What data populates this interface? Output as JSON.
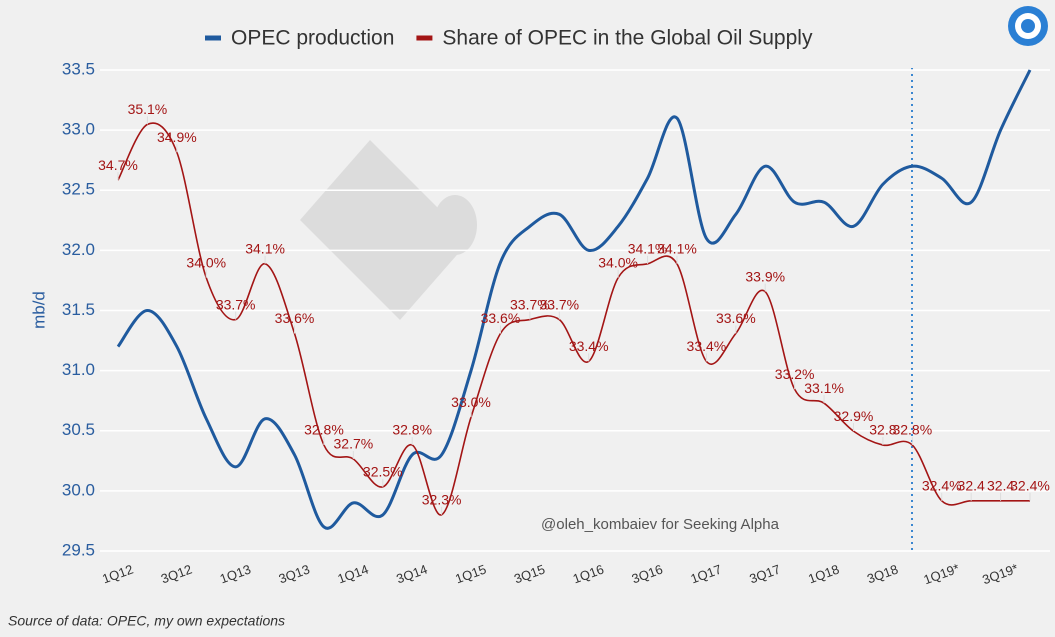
{
  "chart_data": {
    "type": "line",
    "legend_position": "top",
    "y_label": "mb/d",
    "annotation": "@oleh_kombaiev for Seeking Alpha",
    "source": "Source of data: OPEC, my own expectations",
    "categories": [
      "1Q12",
      null,
      "3Q12",
      null,
      "1Q13",
      null,
      "3Q13",
      null,
      "1Q14",
      null,
      "3Q14",
      null,
      "1Q15",
      null,
      "3Q15",
      null,
      "1Q16",
      null,
      "3Q16",
      null,
      "1Q17",
      null,
      "3Q17",
      null,
      "1Q18",
      null,
      "3Q18",
      null,
      "1Q19*",
      null,
      "3Q19*",
      null
    ],
    "ylim": [
      29.5,
      33.5
    ],
    "yticks": [
      29.5,
      {
        "value": 30,
        "label": "30.0"
      },
      30.5,
      {
        "value": 31,
        "label": "31.0"
      },
      31.5,
      {
        "value": 32,
        "label": "32.0"
      },
      32.5,
      {
        "value": 33,
        "label": "33.0"
      },
      33.5
    ],
    "y2lim": [
      32.04,
      35.49
    ],
    "grid": true,
    "series": [
      {
        "name": "OPEC production",
        "color": "#1f5a9e",
        "values": [
          31.2,
          31.5,
          31.2,
          30.6,
          30.2,
          30.6,
          30.3,
          29.7,
          29.9,
          29.8,
          30.3,
          30.3,
          31.0,
          31.9,
          32.2,
          32.3,
          32.0,
          32.2,
          32.6,
          33.1,
          32.1,
          32.3,
          32.7,
          32.4,
          32.4,
          32.2,
          32.55,
          32.7,
          32.6,
          32.4,
          33.0,
          33.5
        ]
      },
      {
        "name": "Share of OPEC in the Global Oil Supply",
        "color": "#a31515",
        "axis": "y2",
        "values": [
          34.7,
          35.1,
          34.9,
          34.0,
          33.7,
          34.1,
          33.6,
          32.8,
          32.7,
          32.5,
          32.8,
          32.3,
          33.0,
          33.6,
          33.7,
          33.7,
          33.4,
          34.0,
          34.1,
          34.1,
          33.4,
          33.6,
          33.9,
          33.2,
          33.1,
          32.9,
          32.8,
          32.8,
          32.4,
          32.4,
          32.4,
          32.4
        ],
        "value_labels": [
          "34.7%",
          "35.1%",
          "34.9%",
          "34.0%",
          "33.7%",
          "34.1%",
          "33.6%",
          "32.8%",
          "32.7%",
          "32.5%",
          "32.8%",
          "32.3%",
          "33.0%",
          "33.6%",
          "33.7%",
          "33.7%",
          "33.4%",
          "34.0%",
          "34.1%",
          "34.1%",
          "33.4%",
          "33.6%",
          "33.9%",
          "33.2%",
          "33.1%",
          "32.9%",
          "32.8",
          "32.8%",
          "32.4%",
          "32.4",
          "32.4",
          "32.4%"
        ]
      }
    ]
  }
}
